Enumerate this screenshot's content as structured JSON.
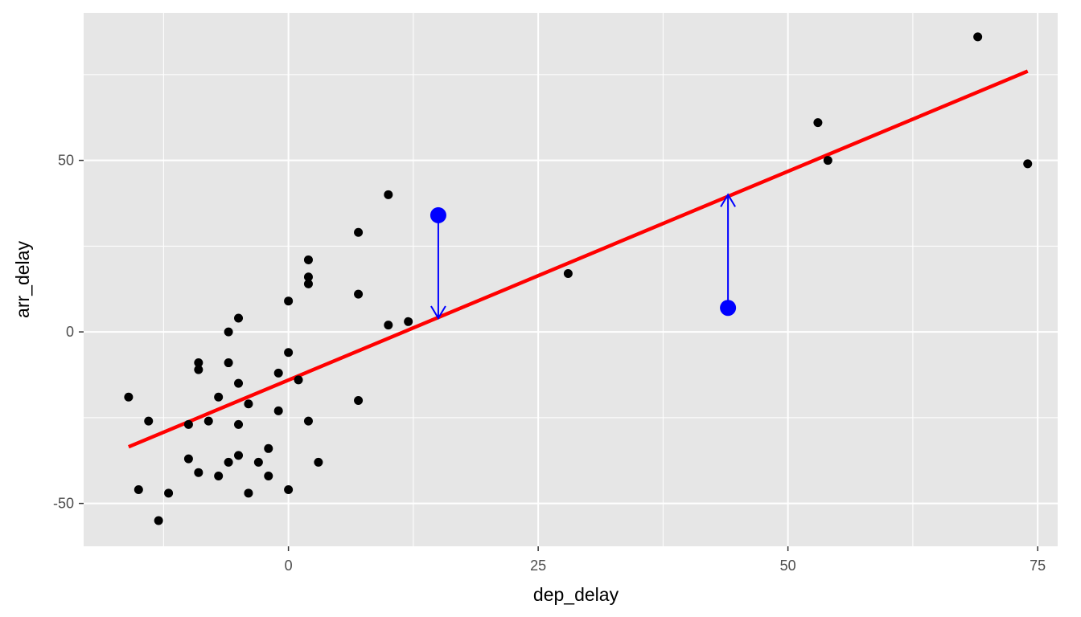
{
  "chart_data": {
    "type": "scatter",
    "xlabel": "dep_delay",
    "ylabel": "arr_delay",
    "xlim": [
      -20.5,
      77
    ],
    "ylim": [
      -62.5,
      93
    ],
    "x_ticks": [
      0,
      25,
      50,
      75
    ],
    "y_ticks": [
      -50,
      0,
      50
    ],
    "x_minor_ticks": [
      -12.5,
      12.5,
      37.5,
      62.5
    ],
    "y_minor_ticks": [
      -25,
      25,
      75
    ],
    "grid": true,
    "points": [
      {
        "x": -16,
        "y": -19
      },
      {
        "x": -15,
        "y": -46
      },
      {
        "x": -14,
        "y": -26
      },
      {
        "x": -13,
        "y": -55
      },
      {
        "x": -12,
        "y": -47
      },
      {
        "x": -10,
        "y": -27
      },
      {
        "x": -10,
        "y": -37
      },
      {
        "x": -9,
        "y": -9
      },
      {
        "x": -9,
        "y": -11
      },
      {
        "x": -9,
        "y": -41
      },
      {
        "x": -8,
        "y": -26
      },
      {
        "x": -7,
        "y": -19
      },
      {
        "x": -7,
        "y": -42
      },
      {
        "x": -6,
        "y": 0
      },
      {
        "x": -6,
        "y": -9
      },
      {
        "x": -6,
        "y": -38
      },
      {
        "x": -5,
        "y": 4
      },
      {
        "x": -5,
        "y": -15
      },
      {
        "x": -5,
        "y": -27
      },
      {
        "x": -5,
        "y": -36
      },
      {
        "x": -4,
        "y": -21
      },
      {
        "x": -4,
        "y": -47
      },
      {
        "x": -3,
        "y": -38
      },
      {
        "x": -2,
        "y": -34
      },
      {
        "x": -2,
        "y": -42
      },
      {
        "x": -1,
        "y": -12
      },
      {
        "x": -1,
        "y": -23
      },
      {
        "x": 0,
        "y": 9
      },
      {
        "x": 0,
        "y": -6
      },
      {
        "x": 0,
        "y": -46
      },
      {
        "x": 1,
        "y": -14
      },
      {
        "x": 2,
        "y": 21
      },
      {
        "x": 2,
        "y": 16
      },
      {
        "x": 2,
        "y": 14
      },
      {
        "x": 2,
        "y": -26
      },
      {
        "x": 3,
        "y": -38
      },
      {
        "x": 7,
        "y": 29
      },
      {
        "x": 7,
        "y": 11
      },
      {
        "x": 7,
        "y": -20
      },
      {
        "x": 10,
        "y": 40
      },
      {
        "x": 10,
        "y": 2
      },
      {
        "x": 12,
        "y": 3
      },
      {
        "x": 28,
        "y": 17
      },
      {
        "x": 53,
        "y": 61
      },
      {
        "x": 54,
        "y": 50
      },
      {
        "x": 69,
        "y": 86
      },
      {
        "x": 74,
        "y": 49
      }
    ],
    "regression_line": {
      "x": [
        -16,
        74
      ],
      "y": [
        -33.5,
        76
      ],
      "color": "#ff0000"
    },
    "highlighted_points": [
      {
        "x": 15,
        "y": 34,
        "fitted": 4
      },
      {
        "x": 44,
        "y": 7,
        "fitted": 40
      }
    ],
    "highlight_color": "#0000ff",
    "point_color": "#000000",
    "panel_background": "#e6e6e6",
    "grid_color": "#ffffff"
  }
}
